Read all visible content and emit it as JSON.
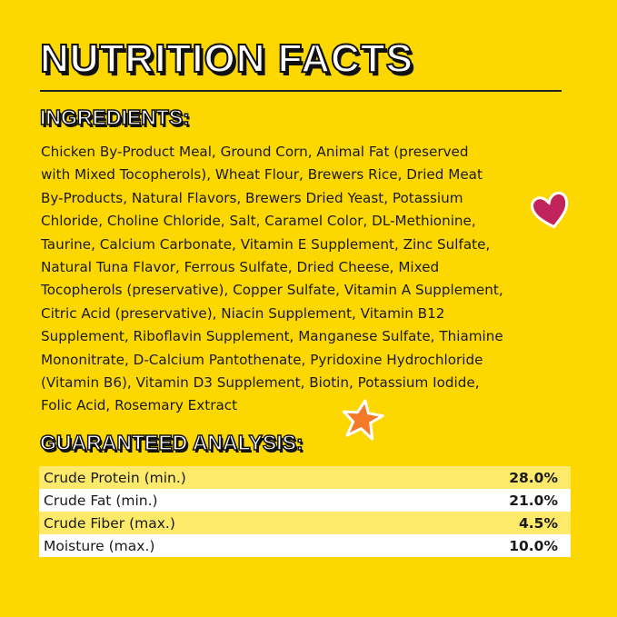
{
  "title": "NUTRITION FACTS",
  "ingredients": {
    "heading": "INGREDIENTS:",
    "lines": [
      "Chicken By-Product Meal, Ground Corn, Animal Fat (preserved",
      "with Mixed Tocopherols), Wheat Flour, Brewers Rice, Dried Meat",
      "By-Products, Natural Flavors, Brewers Dried Yeast, Potassium",
      "Chloride, Choline Chloride, Salt, Caramel Color, DL-Methionine,",
      "Taurine, Calcium Carbonate, Vitamin E Supplement, Zinc Sulfate,",
      "Natural Tuna Flavor, Ferrous Sulfate, Dried Cheese, Mixed",
      "Tocopherols (preservative), Copper Sulfate, Vitamin A Supplement,",
      "Citric Acid (preservative), Niacin Supplement, Vitamin B12",
      "Supplement, Riboflavin Supplement, Manganese Sulfate, Thiamine",
      "Mononitrate, D-Calcium Pantothenate, Pyridoxine Hydrochloride",
      "(Vitamin B6), Vitamin D3 Supplement, Biotin, Potassium Iodide,",
      "Folic Acid, Rosemary Extract"
    ]
  },
  "analysis": {
    "heading": "GUARANTEED ANALYSIS:",
    "rows": [
      {
        "label": "Crude Protein (min.)",
        "value": "28.0%"
      },
      {
        "label": "Crude Fat (min.)",
        "value": "21.0%"
      },
      {
        "label": "Crude Fiber (max.)",
        "value": "4.5%"
      },
      {
        "label": "Moisture (max.)",
        "value": "10.0%"
      }
    ]
  },
  "colors": {
    "background": "#fdd800",
    "row_highlight": "#fde96a",
    "heart": "#c0245a",
    "star": "#f47a2a"
  },
  "icons": [
    "heart-icon",
    "star-icon"
  ]
}
